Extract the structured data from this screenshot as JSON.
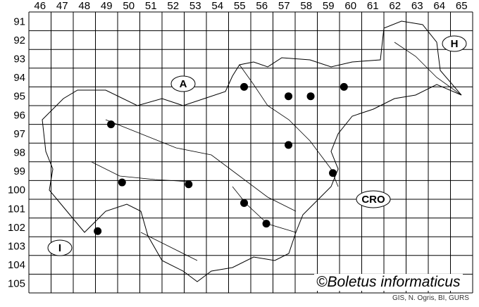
{
  "map": {
    "columns": [
      "46",
      "47",
      "48",
      "49",
      "50",
      "51",
      "52",
      "53",
      "54",
      "55",
      "56",
      "57",
      "58",
      "59",
      "60",
      "61",
      "62",
      "63",
      "64",
      "65"
    ],
    "rows": [
      "91",
      "92",
      "93",
      "94",
      "95",
      "96",
      "97",
      "98",
      "99",
      "100",
      "101",
      "102",
      "103",
      "104",
      "105"
    ],
    "countries": [
      {
        "label": "A"
      },
      {
        "label": "H"
      },
      {
        "label": "CRO"
      },
      {
        "label": "I"
      }
    ],
    "records_grid_coords": [
      {
        "col": 55.2,
        "row": 94.5
      },
      {
        "col": 57.2,
        "row": 95.0
      },
      {
        "col": 58.2,
        "row": 95.0
      },
      {
        "col": 59.7,
        "row": 94.5
      },
      {
        "col": 49.2,
        "row": 96.5
      },
      {
        "col": 57.2,
        "row": 97.6
      },
      {
        "col": 59.2,
        "row": 99.1
      },
      {
        "col": 49.7,
        "row": 99.6
      },
      {
        "col": 52.7,
        "row": 99.7
      },
      {
        "col": 55.2,
        "row": 100.7
      },
      {
        "col": 56.2,
        "row": 101.8
      },
      {
        "col": 48.6,
        "row": 102.2
      }
    ],
    "copyright": "©Boletus informaticus",
    "credits": "GIS, N. Ogris, BI, GURS",
    "colors": {
      "grid": "#000000",
      "dots": "#000000",
      "background": "#ffffff"
    }
  }
}
